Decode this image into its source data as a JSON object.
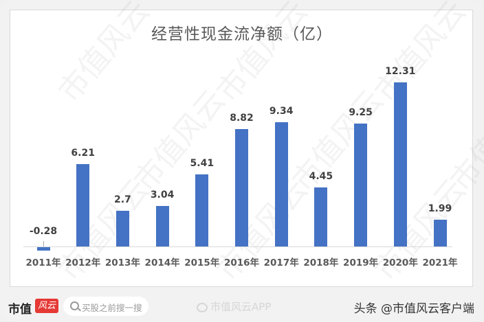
{
  "chart_data": {
    "type": "bar",
    "title": "经营性现金流净额（亿）",
    "xlabel": "",
    "ylabel": "",
    "categories": [
      "2011年",
      "2012年",
      "2013年",
      "2014年",
      "2015年",
      "2016年",
      "2017年",
      "2018年",
      "2019年",
      "2020年",
      "2021年"
    ],
    "values": [
      -0.28,
      6.21,
      2.7,
      3.04,
      5.41,
      8.82,
      9.34,
      4.45,
      9.25,
      12.31,
      1.99
    ],
    "value_labels": [
      "-0.28",
      "6.21",
      "2.7",
      "3.04",
      "5.41",
      "8.82",
      "9.34",
      "4.45",
      "9.25",
      "12.31",
      "1.99"
    ],
    "grid": false,
    "legend": "none",
    "bar_color": "#4472c4",
    "ylim": [
      -0.28,
      12.31
    ]
  },
  "watermark": "市值风云",
  "footer": {
    "brand_text": "市值",
    "brand_logo_text": "风云",
    "search_placeholder": "买股之前搜一搜",
    "weibo_text": "市值风云APP",
    "toutiao_text": "头条 @市值风云客户端"
  }
}
